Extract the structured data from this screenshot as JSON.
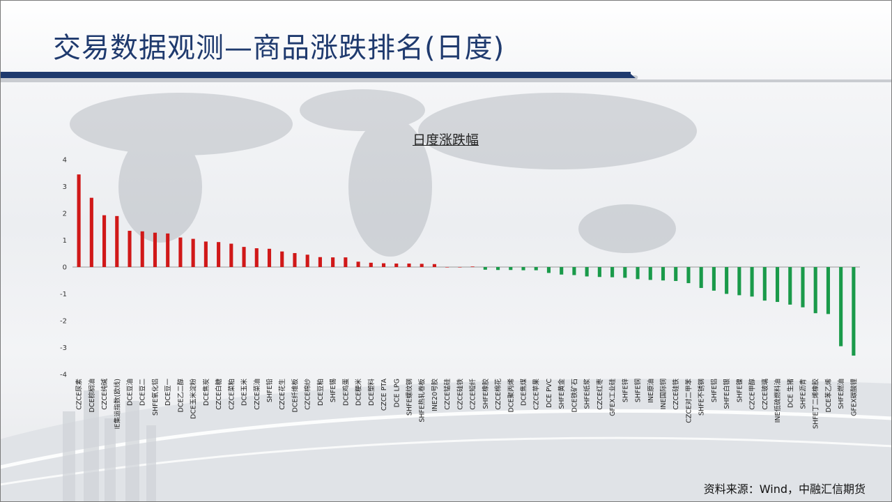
{
  "page": {
    "title": "交易数据观测—商品涨跌排名(日度)",
    "source": "资料来源：Wind，中融汇信期货",
    "title_color": "#1f3a6e"
  },
  "chart_data": {
    "type": "bar",
    "title": "日度涨跌幅",
    "xlabel": "",
    "ylabel": "",
    "ylim": [
      -4,
      4
    ],
    "yticks": [
      4,
      3,
      2,
      1,
      0,
      -1,
      -2,
      -3,
      -4
    ],
    "grid": false,
    "legend": "none",
    "positive_color": "#d01818",
    "negative_color": "#1a9a4a",
    "categories": [
      "CZCE尿素",
      "DCE棕榈油",
      "CZCE纯碱",
      "INE集运指数(欧线)",
      "DCE豆油",
      "DCE豆二",
      "SHFE氧化铝",
      "DCE豆一",
      "DCE乙二醇",
      "DCE玉米淀粉",
      "DCE焦炭",
      "CZCE白糖",
      "CZCE菜粕",
      "DCE玉米",
      "CZCE菜油",
      "SHFE铅",
      "CZCE花生",
      "DCE纤维板",
      "CZCE棉纱",
      "DCE豆粕",
      "SHFE锡",
      "DCE鸡蛋",
      "DCE粳米",
      "DCE塑料",
      "CZCE PTA",
      "DCE LPG",
      "SHFE螺纹钢",
      "SHFE热轧卷板",
      "INE20号胶",
      "CZCE锰硅",
      "CZCE硅铁",
      "CZCE短纤",
      "SHFE橡胶",
      "CZCE棉花",
      "DCE聚丙烯",
      "DCE焦煤",
      "CZCE苹果",
      "DCE PVC",
      "SHFE黄金",
      "DCE铁矿石",
      "SHFE纸浆",
      "CZCE红枣",
      "GFEX工业硅",
      "SHFE锌",
      "SHFE铜",
      "INE原油",
      "INE国际铜",
      "CZCE硅铁",
      "CZCE对二甲苯",
      "SHFE不锈钢",
      "SHFE铝",
      "SHFE白银",
      "SHFE镍",
      "CZCE甲醇",
      "CZCE玻璃",
      "INE低硫燃料油",
      "DCE 生猪",
      "SHFE沥青",
      "SHFE丁二烯橡胶",
      "DCE苯乙烯",
      "SHFE燃油",
      "GFEX碳酸锂"
    ],
    "values": [
      3.45,
      2.58,
      1.93,
      1.9,
      1.35,
      1.33,
      1.28,
      1.25,
      1.1,
      1.05,
      0.95,
      0.93,
      0.87,
      0.75,
      0.7,
      0.68,
      0.58,
      0.52,
      0.46,
      0.37,
      0.36,
      0.36,
      0.2,
      0.16,
      0.14,
      0.13,
      0.13,
      0.12,
      0.11,
      0.0,
      0.0,
      0.02,
      -0.1,
      -0.11,
      -0.11,
      -0.12,
      -0.12,
      -0.22,
      -0.28,
      -0.3,
      -0.35,
      -0.37,
      -0.38,
      -0.4,
      -0.45,
      -0.48,
      -0.5,
      -0.52,
      -0.6,
      -0.78,
      -0.88,
      -1.0,
      -1.05,
      -1.1,
      -1.25,
      -1.3,
      -1.4,
      -1.5,
      -1.72,
      -1.75,
      -2.95,
      -3.3
    ]
  }
}
